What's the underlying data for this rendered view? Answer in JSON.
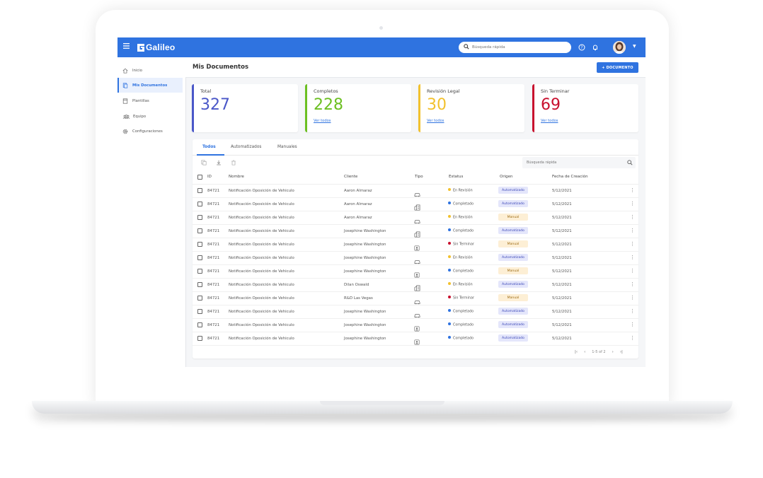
{
  "app": {
    "brand": "Galileo",
    "search_placeholder": "Búsqueda rápida"
  },
  "sidebar": {
    "items": [
      {
        "label": "Inicio",
        "icon": "home-icon",
        "active": false
      },
      {
        "label": "Mis Documentos",
        "icon": "documents-icon",
        "active": true
      },
      {
        "label": "Plantillas",
        "icon": "template-icon",
        "active": false
      },
      {
        "label": "Equipo",
        "icon": "team-icon",
        "active": false
      },
      {
        "label": "Configuraciones",
        "icon": "gear-icon",
        "active": false
      }
    ]
  },
  "page": {
    "title": "Mis Documentos",
    "new_button": "+ DOCUMENTO"
  },
  "cards": [
    {
      "title": "Total",
      "value": "327",
      "color": "#4a57c8",
      "link": ""
    },
    {
      "title": "Completos",
      "value": "228",
      "color": "#6cbf22",
      "link": "Ver todos"
    },
    {
      "title": "Revisión Legal",
      "value": "30",
      "color": "#f2c12e",
      "link": "Ver todos"
    },
    {
      "title": "Sin Terminar",
      "value": "69",
      "color": "#c8102e",
      "link": "Ver todos"
    }
  ],
  "tabs": [
    "Todos",
    "Automatizados",
    "Manuales"
  ],
  "table": {
    "search_placeholder": "Búsqueda rápida",
    "headers": {
      "id": "ID",
      "nombre": "Nombre",
      "cliente": "Cliente",
      "tipo": "Tipo",
      "estatus": "Estatus",
      "origen": "Origen",
      "fecha": "Fecha de Creación"
    },
    "status_colors": {
      "En Revisión": "#f2c12e",
      "Completado": "#2f73e0",
      "Sin Terminar": "#c8102e"
    },
    "rows": [
      {
        "id": "84721",
        "nombre": "Notificación Oposición de Vehiculo",
        "cliente": "Aaron Almaraz",
        "tipo": "car-icon",
        "estatus": "En Revisión",
        "origen": "Automatizado",
        "fecha": "5/12/2021"
      },
      {
        "id": "84721",
        "nombre": "Notificación Oposición de Vehiculo",
        "cliente": "Aaron Almaraz",
        "tipo": "building-icon",
        "estatus": "Completado",
        "origen": "Automatizado",
        "fecha": "5/12/2021"
      },
      {
        "id": "84721",
        "nombre": "Notificación Oposición de Vehiculo",
        "cliente": "Aaron Almaraz",
        "tipo": "car-icon",
        "estatus": "En Revisión",
        "origen": "Manual",
        "fecha": "5/12/2021"
      },
      {
        "id": "84721",
        "nombre": "Notificación Oposición de Vehiculo",
        "cliente": "Josephine Washington",
        "tipo": "building-icon",
        "estatus": "Completado",
        "origen": "Automatizado",
        "fecha": "5/12/2021"
      },
      {
        "id": "84721",
        "nombre": "Notificación Oposición de Vehiculo",
        "cliente": "Josephine Washington",
        "tipo": "person-card-icon",
        "estatus": "Sin Terminar",
        "origen": "Manual",
        "fecha": "5/12/2021"
      },
      {
        "id": "84721",
        "nombre": "Notificación Oposición de Vehiculo",
        "cliente": "Josephine Washington",
        "tipo": "car-icon",
        "estatus": "En Revisión",
        "origen": "Automatizado",
        "fecha": "5/12/2021"
      },
      {
        "id": "84721",
        "nombre": "Notificación Oposición de Vehiculo",
        "cliente": "Josephine Washington",
        "tipo": "person-card-icon",
        "estatus": "Completado",
        "origen": "Manual",
        "fecha": "5/12/2021"
      },
      {
        "id": "84721",
        "nombre": "Notificación Oposición de Vehiculo",
        "cliente": "Dilan Oswald",
        "tipo": "building-icon",
        "estatus": "En Revisión",
        "origen": "Automatizado",
        "fecha": "5/12/2021"
      },
      {
        "id": "84721",
        "nombre": "Notificación Oposición de Vehiculo",
        "cliente": "R&D Las Vegas",
        "tipo": "car-icon",
        "estatus": "Sin Terminar",
        "origen": "Manual",
        "fecha": "5/12/2021"
      },
      {
        "id": "84721",
        "nombre": "Notificación Oposición de Vehiculo",
        "cliente": "Josephine Washington",
        "tipo": "car-icon",
        "estatus": "Completado",
        "origen": "Automatizado",
        "fecha": "5/12/2021"
      },
      {
        "id": "84721",
        "nombre": "Notificación Oposición de Vehiculo",
        "cliente": "Josephine Washington",
        "tipo": "person-card-icon",
        "estatus": "Completado",
        "origen": "Automatizado",
        "fecha": "5/12/2021"
      },
      {
        "id": "84721",
        "nombre": "Notificación Oposición de Vehiculo",
        "cliente": "Josephine Washington",
        "tipo": "person-card-icon",
        "estatus": "Completado",
        "origen": "Automatizado",
        "fecha": "5/12/2021"
      }
    ]
  },
  "pager": {
    "range": "1-5 of 2"
  }
}
